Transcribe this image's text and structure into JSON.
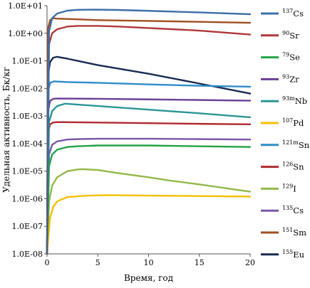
{
  "chart_data": {
    "type": "line",
    "title": "",
    "xlabel": "Время, год",
    "ylabel": "Удельная активность, Бк/кг",
    "xlim": [
      0,
      20
    ],
    "ylim": [
      1e-08,
      10
    ],
    "yscale": "log",
    "grid": false,
    "legend": "right",
    "xticks": [
      "0",
      "5",
      "10",
      "15",
      "20"
    ],
    "yticks": [
      "1.0E-08",
      "1.0E-07",
      "1.0E-06",
      "1.0E-05",
      "1.0E-04",
      "1.0E-03",
      "1.0E-02",
      "1.0E-01",
      "1.0E+00",
      "1.0E+01"
    ],
    "series": [
      {
        "name": "Cs",
        "mass": "137",
        "color": "#3d6fa8",
        "points": [
          [
            0,
            1e-08
          ],
          [
            0.2,
            1.2
          ],
          [
            0.5,
            3.5
          ],
          [
            1,
            5.2
          ],
          [
            2,
            6.6
          ],
          [
            3,
            7.1
          ],
          [
            5,
            7.2
          ],
          [
            7,
            7.0
          ],
          [
            10,
            6.5
          ],
          [
            15,
            5.7
          ],
          [
            20,
            4.9
          ]
        ]
      },
      {
        "name": "Sr",
        "mass": "90",
        "color": "#b0373a",
        "points": [
          [
            0,
            1e-08
          ],
          [
            0.2,
            0.4
          ],
          [
            0.5,
            1.0
          ],
          [
            1,
            1.4
          ],
          [
            2,
            1.75
          ],
          [
            3,
            1.85
          ],
          [
            5,
            1.85
          ],
          [
            7,
            1.75
          ],
          [
            10,
            1.55
          ],
          [
            15,
            1.25
          ],
          [
            20,
            0.9
          ]
        ]
      },
      {
        "name": "Se",
        "mass": "79",
        "color": "#22a345",
        "points": [
          [
            0,
            1e-08
          ],
          [
            0.2,
            1.5e-05
          ],
          [
            0.5,
            4e-05
          ],
          [
            1,
            6e-05
          ],
          [
            2,
            7.5e-05
          ],
          [
            3,
            8e-05
          ],
          [
            5,
            8.5e-05
          ],
          [
            10,
            8.5e-05
          ],
          [
            15,
            8e-05
          ],
          [
            20,
            7.5e-05
          ]
        ]
      },
      {
        "name": "Zr",
        "mass": "93",
        "color": "#6a4096",
        "points": [
          [
            0,
            1e-08
          ],
          [
            0.1,
            0.0015
          ],
          [
            0.3,
            0.0035
          ],
          [
            0.6,
            0.0042
          ],
          [
            1,
            0.0043
          ],
          [
            5,
            0.0042
          ],
          [
            10,
            0.004
          ],
          [
            15,
            0.0038
          ],
          [
            20,
            0.0036
          ]
        ]
      },
      {
        "name": "Nb",
        "mass": "93m",
        "color": "#2a9595",
        "points": [
          [
            0,
            1e-08
          ],
          [
            0.2,
            0.0006
          ],
          [
            0.5,
            0.0015
          ],
          [
            1,
            0.0023
          ],
          [
            1.8,
            0.0028
          ],
          [
            3,
            0.0026
          ],
          [
            5,
            0.0023
          ],
          [
            10,
            0.0017
          ],
          [
            15,
            0.00125
          ],
          [
            20,
            0.0009
          ]
        ]
      },
      {
        "name": "Pd",
        "mass": "107",
        "color": "#f6c000",
        "points": [
          [
            0,
            1e-08
          ],
          [
            0.15,
            5e-08
          ],
          [
            0.3,
            2e-07
          ],
          [
            0.6,
            5e-07
          ],
          [
            1,
            8e-07
          ],
          [
            2,
            1.15e-06
          ],
          [
            4,
            1.3e-06
          ],
          [
            6,
            1.35e-06
          ],
          [
            10,
            1.3e-06
          ],
          [
            15,
            1.25e-06
          ],
          [
            20,
            1.2e-06
          ]
        ]
      },
      {
        "name": "Sn",
        "mass": "121m",
        "color": "#2e8cc8",
        "points": [
          [
            0,
            1e-08
          ],
          [
            0.1,
            0.008
          ],
          [
            0.3,
            0.016
          ],
          [
            0.7,
            0.018
          ],
          [
            2,
            0.017
          ],
          [
            5,
            0.016
          ],
          [
            10,
            0.014
          ],
          [
            15,
            0.0125
          ],
          [
            20,
            0.0115
          ]
        ]
      },
      {
        "name": "Sn",
        "mass": "126",
        "color": "#b02a30",
        "points": [
          [
            0,
            1e-08
          ],
          [
            0.1,
            0.00025
          ],
          [
            0.3,
            0.0005
          ],
          [
            0.6,
            0.00058
          ],
          [
            1,
            0.0006
          ],
          [
            5,
            0.00058
          ],
          [
            10,
            0.00055
          ],
          [
            15,
            0.00052
          ],
          [
            20,
            0.0005
          ]
        ]
      },
      {
        "name": "I",
        "mass": "129",
        "color": "#93b84a",
        "points": [
          [
            0,
            1e-08
          ],
          [
            0.2,
            8e-07
          ],
          [
            0.5,
            3e-06
          ],
          [
            1,
            6e-06
          ],
          [
            2,
            1e-05
          ],
          [
            3,
            1.15e-05
          ],
          [
            3.5,
            1.18e-05
          ],
          [
            5,
            1.1e-05
          ],
          [
            7,
            8.5e-06
          ],
          [
            10,
            6e-06
          ],
          [
            12,
            4.6e-06
          ],
          [
            15,
            3.3e-06
          ],
          [
            20,
            1.8e-06
          ]
        ]
      },
      {
        "name": "Cs",
        "mass": "135",
        "color": "#7a57a8",
        "points": [
          [
            0,
            1e-08
          ],
          [
            0.2,
            4e-05
          ],
          [
            0.5,
            9e-05
          ],
          [
            1,
            0.00012
          ],
          [
            2,
            0.00014
          ],
          [
            3,
            0.000145
          ],
          [
            5,
            0.00015
          ],
          [
            10,
            0.00015
          ],
          [
            15,
            0.000145
          ],
          [
            20,
            0.00014
          ]
        ]
      },
      {
        "name": "Sm",
        "mass": "151",
        "color": "#a04f20",
        "points": [
          [
            0,
            1e-08
          ],
          [
            0.1,
            1.5
          ],
          [
            0.3,
            3.0
          ],
          [
            0.6,
            3.5
          ],
          [
            1,
            3.4
          ],
          [
            3,
            3.2
          ],
          [
            5,
            3.0
          ],
          [
            10,
            2.8
          ],
          [
            15,
            2.6
          ],
          [
            20,
            2.4
          ]
        ]
      },
      {
        "name": "Eu",
        "mass": "155",
        "color": "#172a52",
        "points": [
          [
            0,
            1e-08
          ],
          [
            0.1,
            0.03
          ],
          [
            0.3,
            0.09
          ],
          [
            0.6,
            0.13
          ],
          [
            1,
            0.14
          ],
          [
            2,
            0.12
          ],
          [
            5,
            0.07
          ],
          [
            10,
            0.034
          ],
          [
            15,
            0.015
          ],
          [
            20,
            0.0065
          ]
        ]
      }
    ]
  }
}
